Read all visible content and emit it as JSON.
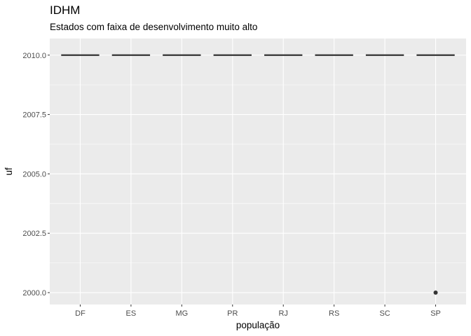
{
  "chart_data": {
    "type": "boxplot",
    "title": "IDHM",
    "subtitle": "Estados com faixa de desenvolvimento muito alto",
    "xlabel": "população",
    "ylabel": "uf",
    "categories": [
      "DF",
      "ES",
      "MG",
      "PR",
      "RJ",
      "RS",
      "SC",
      "SP"
    ],
    "ylim": [
      1999.5,
      2010.7
    ],
    "yticks": [
      2000.0,
      2002.5,
      2005.0,
      2007.5,
      2010.0
    ],
    "ytick_labels": [
      "2000.0",
      "2002.5",
      "2005.0",
      "2007.5",
      "2010.0"
    ],
    "series": [
      {
        "values": [
          2010,
          2010,
          2010,
          2010,
          2010,
          2010,
          2010,
          2010
        ]
      }
    ],
    "outliers": [
      {
        "category": "SP",
        "value": 2000
      }
    ],
    "grid": true,
    "colors": {
      "panel": "#ebebeb",
      "grid": "#ffffff",
      "box": "#333333",
      "tick": "#333333"
    }
  }
}
